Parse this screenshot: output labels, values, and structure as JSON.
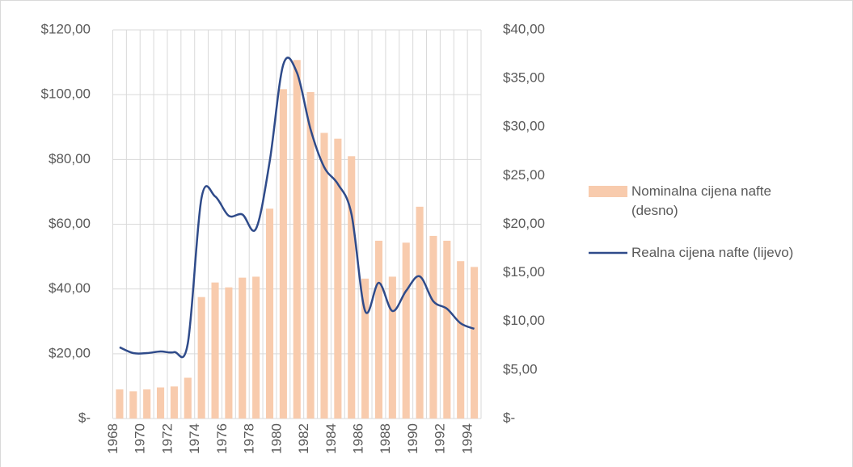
{
  "chart_data": {
    "type": "bar_line",
    "categories": [
      "1968",
      null,
      "1970",
      null,
      "1972",
      null,
      "1974",
      null,
      "1976",
      null,
      "1978",
      null,
      "1980",
      null,
      "1982",
      null,
      "1984",
      null,
      "1986",
      null,
      "1988",
      null,
      "1990",
      null,
      "1992",
      null,
      "1994"
    ],
    "series": [
      {
        "name": "Nominalna cijena nafte (desno)",
        "type": "bar",
        "axis": "y2",
        "color": "#f8cbad",
        "values": [
          3.0,
          2.8,
          3.0,
          3.2,
          3.3,
          4.2,
          12.5,
          14.0,
          13.5,
          14.5,
          14.6,
          21.6,
          33.9,
          36.9,
          33.6,
          29.4,
          28.8,
          27.0,
          14.4,
          18.3,
          14.6,
          18.1,
          21.8,
          18.8,
          18.3,
          16.2,
          15.6
        ]
      },
      {
        "name": "Realna cijena nafte (lijevo)",
        "type": "line",
        "axis": "y",
        "color": "#2f4b8a",
        "values": [
          22.0,
          20.2,
          20.2,
          20.7,
          20.5,
          23.2,
          68.0,
          68.6,
          62.6,
          63.0,
          58.6,
          79.3,
          109.3,
          106.8,
          89.3,
          77.6,
          72.4,
          63.1,
          33.2,
          41.9,
          33.2,
          39.4,
          43.9,
          36.2,
          33.9,
          29.4,
          27.7
        ]
      }
    ],
    "ylim": [
      0,
      120
    ],
    "yticks": [
      {
        "value": 0,
        "label": "$-"
      },
      {
        "value": 20,
        "label": "$20,00"
      },
      {
        "value": 40,
        "label": "$40,00"
      },
      {
        "value": 60,
        "label": "$60,00"
      },
      {
        "value": 80,
        "label": "$80,00"
      },
      {
        "value": 100,
        "label": "$100,00"
      },
      {
        "value": 120,
        "label": "$120,00"
      }
    ],
    "y2lim": [
      0,
      40
    ],
    "y2ticks": [
      {
        "value": 0,
        "label": "$-"
      },
      {
        "value": 5,
        "label": "$5,00"
      },
      {
        "value": 10,
        "label": "$10,00"
      },
      {
        "value": 15,
        "label": "$15,00"
      },
      {
        "value": 20,
        "label": "$20,00"
      },
      {
        "value": 25,
        "label": "$25,00"
      },
      {
        "value": 30,
        "label": "$30,00"
      },
      {
        "value": 35,
        "label": "$35,00"
      },
      {
        "value": 40,
        "label": "$40,00"
      }
    ],
    "grid": true,
    "legend": "right"
  }
}
